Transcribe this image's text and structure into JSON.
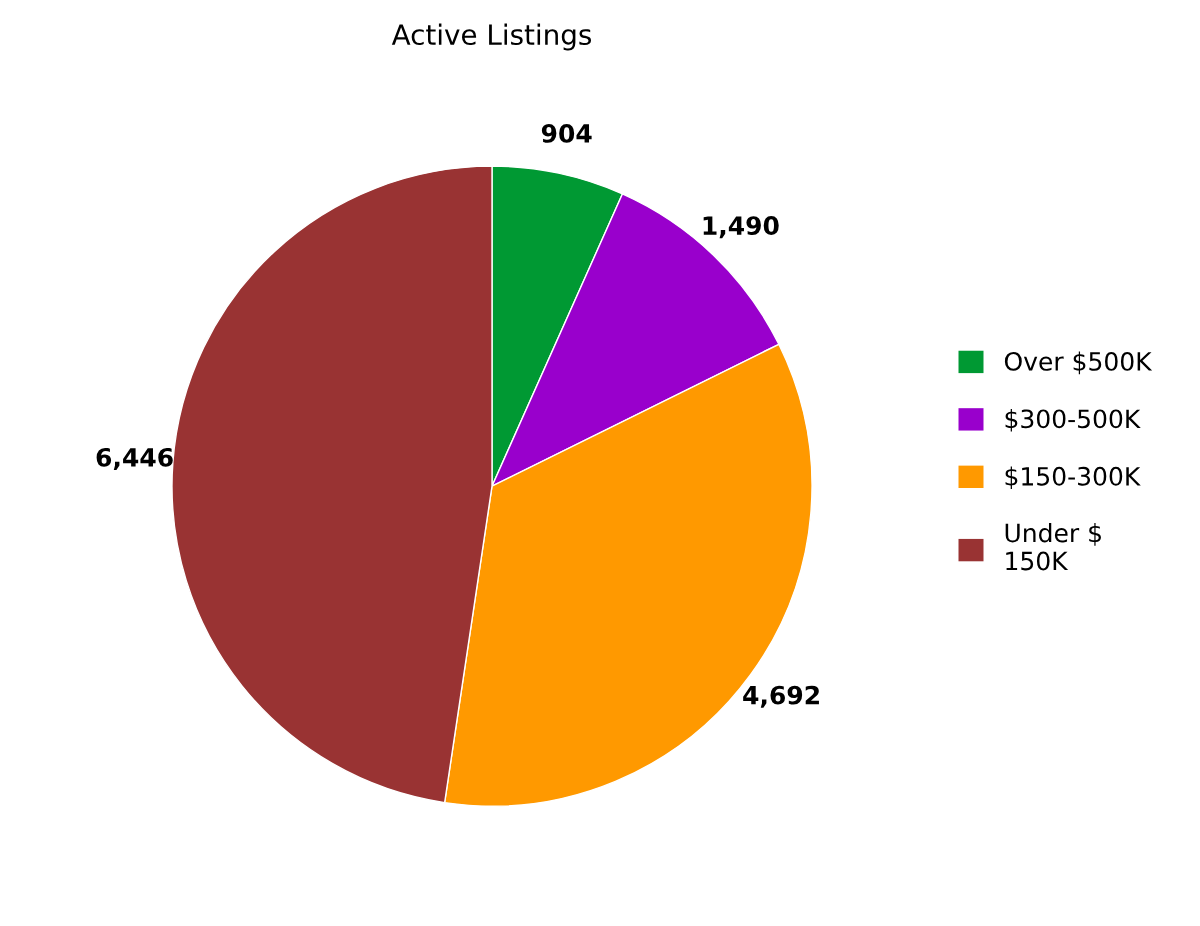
{
  "chart_data": {
    "type": "pie",
    "title": "Active Listings",
    "categories": [
      "Over $500K",
      "$300-500K",
      "$150-300K",
      "Under $\n150K"
    ],
    "values": [
      904,
      1490,
      4692,
      6446
    ],
    "colors": [
      "#009933",
      "#9900cc",
      "#ff9900",
      "#993333"
    ],
    "value_labels": [
      "904",
      "1,490",
      "4,692",
      "6,446"
    ],
    "legend": "right"
  }
}
